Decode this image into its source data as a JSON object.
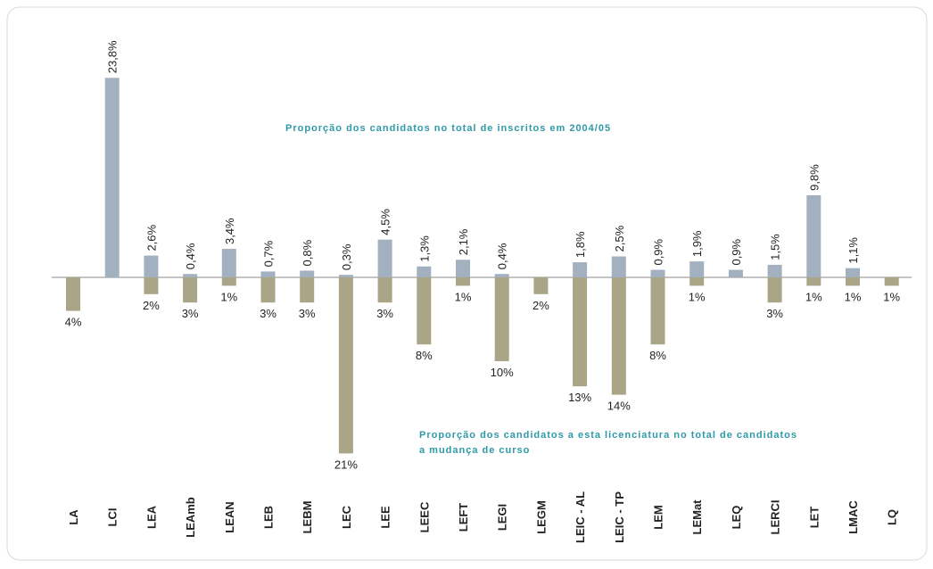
{
  "chart_data": {
    "type": "bar",
    "annotations": [
      [
        "Proporção dos candidatos no total de inscritos em 2004/05"
      ],
      [
        "Proporção dos candidatos a  esta licenciatura no total de candidatos",
        "a mudança de curso"
      ]
    ],
    "categories": [
      "LA",
      "LCI",
      "LEA",
      "LEAmb",
      "LEAN",
      "LEB",
      "LEBM",
      "LEC",
      "LEE",
      "LEEC",
      "LEFT",
      "LEGI",
      "LEGM",
      "LEIC - AL",
      "LEIC - TP",
      "LEM",
      "LEMat",
      "LEQ",
      "LERCI",
      "LET",
      "LMAC",
      "LQ"
    ],
    "series": [
      {
        "color": "#a3b0c0",
        "values": [
          null,
          23.8,
          2.6,
          0.4,
          3.4,
          0.7,
          0.8,
          0.3,
          4.5,
          1.3,
          2.1,
          0.4,
          null,
          1.8,
          2.5,
          0.9,
          1.9,
          0.9,
          1.5,
          9.8,
          1.1,
          null
        ],
        "value_labels": [
          null,
          "23,8%",
          "2,6%",
          "0,4%",
          "3,4%",
          "0,7%",
          "0,8%",
          "0,3%",
          "4,5%",
          "1,3%",
          "2,1%",
          "0,4%",
          null,
          "1,8%",
          "2,5%",
          "0,9%",
          "1,9%",
          "0,9%",
          "1,5%",
          "9,8%",
          "1,1%",
          null
        ]
      },
      {
        "color": "#a9a586",
        "values": [
          -4,
          null,
          -2,
          -3,
          -1,
          -3,
          -3,
          -21,
          -3,
          -8,
          -1,
          -10,
          -2,
          -13,
          -14,
          -8,
          -1,
          null,
          -3,
          -1,
          -1,
          -1
        ],
        "value_labels": [
          "4%",
          null,
          "2%",
          "3%",
          "1%",
          "3%",
          "3%",
          "21%",
          "3%",
          "8%",
          "1%",
          "10%",
          "2%",
          "13%",
          "14%",
          "8%",
          "1%",
          null,
          "3%",
          "1%",
          "1%",
          "1%"
        ]
      }
    ],
    "annotation_color": "#2e9aa8",
    "ylim": [
      -25,
      25
    ]
  }
}
